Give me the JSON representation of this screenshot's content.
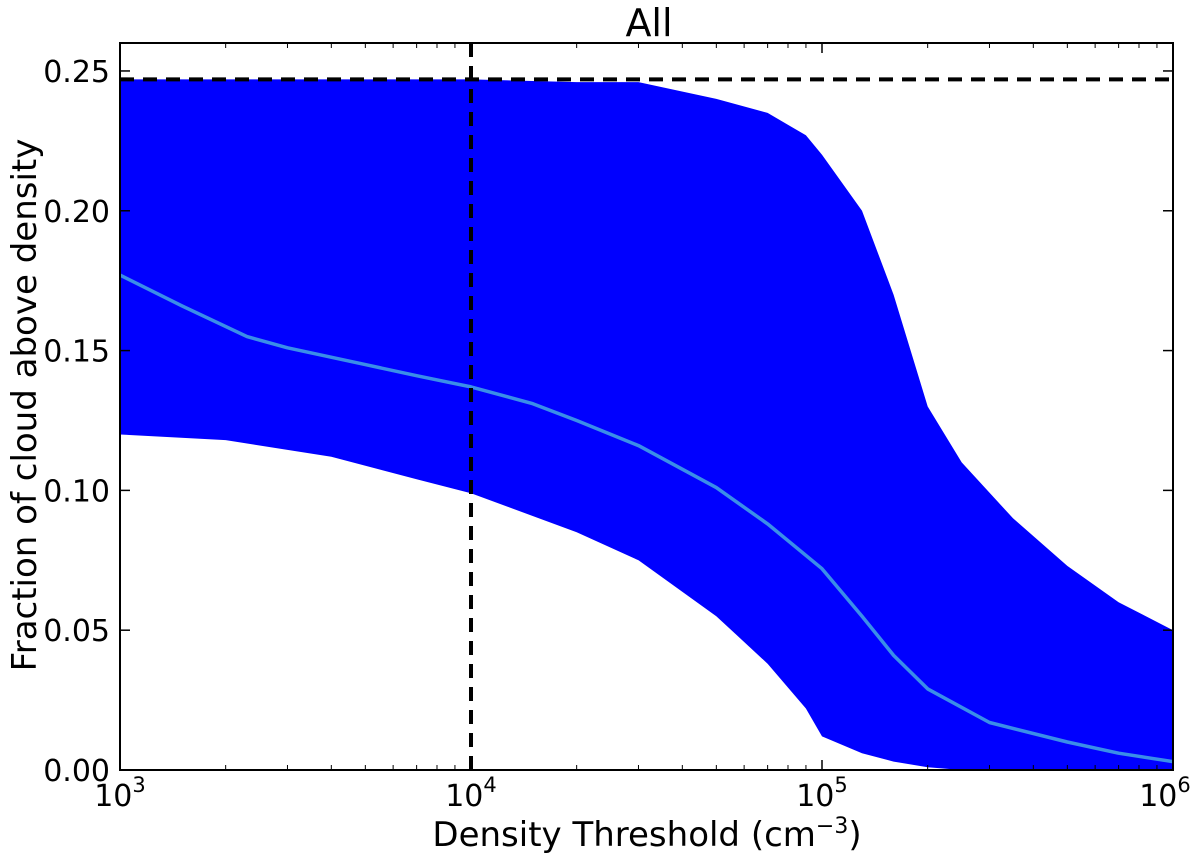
{
  "chart_data": {
    "type": "area",
    "title": "All",
    "xlabel": "Density Threshold (cm",
    "xlabel_sup": "−3",
    "xlabel_close": ")",
    "ylabel": "Fraction of cloud above density",
    "xscale": "log",
    "xlim": [
      1000,
      1000000
    ],
    "ylim": [
      0,
      0.26
    ],
    "grid": false,
    "x_ticks": [
      {
        "base": "10",
        "exp": "3",
        "value": 1000
      },
      {
        "base": "10",
        "exp": "4",
        "value": 10000
      },
      {
        "base": "10",
        "exp": "5",
        "value": 100000
      },
      {
        "base": "10",
        "exp": "6",
        "value": 1000000
      }
    ],
    "y_ticks": [
      {
        "label": "0.00",
        "value": 0.0
      },
      {
        "label": "0.05",
        "value": 0.05
      },
      {
        "label": "0.10",
        "value": 0.1
      },
      {
        "label": "0.15",
        "value": 0.15
      },
      {
        "label": "0.20",
        "value": 0.2
      },
      {
        "label": "0.25",
        "value": 0.25
      }
    ],
    "band": {
      "color": "#0000ff",
      "x": [
        1000,
        2000,
        4000,
        7000,
        10000,
        20000,
        30000,
        50000,
        70000,
        90000,
        100000,
        130000,
        160000,
        200000,
        250000,
        350000,
        500000,
        700000,
        1000000
      ],
      "upper": [
        0.247,
        0.247,
        0.247,
        0.247,
        0.247,
        0.246,
        0.246,
        0.24,
        0.235,
        0.227,
        0.22,
        0.2,
        0.17,
        0.13,
        0.11,
        0.09,
        0.073,
        0.06,
        0.05
      ],
      "lower": [
        0.12,
        0.118,
        0.112,
        0.104,
        0.099,
        0.085,
        0.075,
        0.055,
        0.038,
        0.022,
        0.012,
        0.006,
        0.003,
        0.001,
        0.0,
        0.0,
        0.0,
        0.0,
        0.0
      ]
    },
    "series": [
      {
        "color": "#3a8ee8",
        "x": [
          1000,
          1500,
          2300,
          3000,
          5000,
          7000,
          10000,
          15000,
          20000,
          30000,
          50000,
          70000,
          100000,
          130000,
          160000,
          200000,
          300000,
          500000,
          700000,
          1000000
        ],
        "values": [
          0.177,
          0.166,
          0.155,
          0.151,
          0.145,
          0.141,
          0.137,
          0.131,
          0.125,
          0.116,
          0.101,
          0.088,
          0.072,
          0.055,
          0.041,
          0.029,
          0.017,
          0.01,
          0.006,
          0.003
        ]
      }
    ],
    "reference_lines": [
      {
        "orientation": "horizontal",
        "value": 0.247,
        "style": "dashed",
        "color": "#000000"
      },
      {
        "orientation": "vertical",
        "value": 10000,
        "style": "dashed",
        "color": "#000000"
      }
    ]
  }
}
